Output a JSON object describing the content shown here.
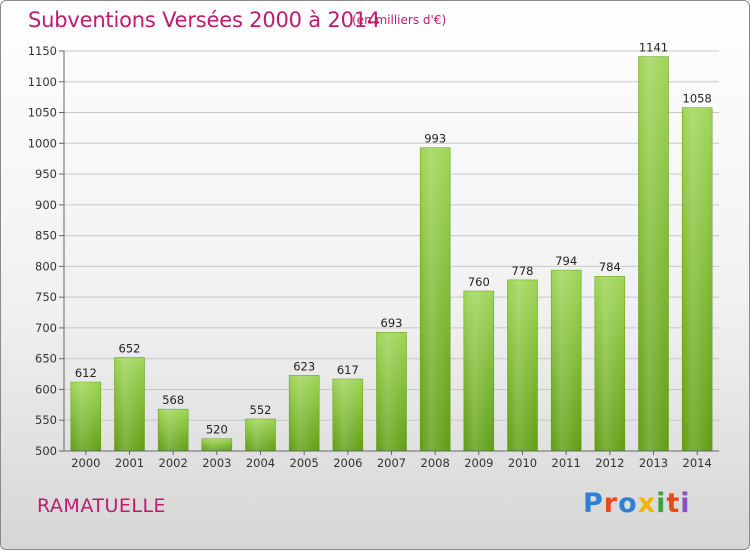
{
  "header": {
    "title": "Subventions Versées 2000 à 2014",
    "unit": "(en milliers d'€)"
  },
  "footer": {
    "commune": "RAMATUELLE",
    "logo": "Proxiti",
    "logo_colors": [
      "#2f7fd6",
      "#e8491d",
      "#2f7fd6",
      "#f2b400",
      "#3aa63a",
      "#e8491d",
      "#8a4fc4"
    ]
  },
  "chart_data": {
    "type": "bar",
    "title": "Subventions Versées 2000 à 2014",
    "categories": [
      "2000",
      "2001",
      "2002",
      "2003",
      "2004",
      "2005",
      "2006",
      "2007",
      "2008",
      "2009",
      "2010",
      "2011",
      "2012",
      "2013",
      "2014"
    ],
    "values": [
      612,
      652,
      568,
      520,
      552,
      623,
      617,
      693,
      993,
      760,
      778,
      794,
      784,
      1141,
      1058
    ],
    "ylim": [
      500,
      1150
    ],
    "yticks": [
      500,
      550,
      600,
      650,
      700,
      750,
      800,
      850,
      900,
      950,
      1000,
      1050,
      1100,
      1150
    ],
    "grid": true,
    "bar_color": "#7dbf2f"
  }
}
